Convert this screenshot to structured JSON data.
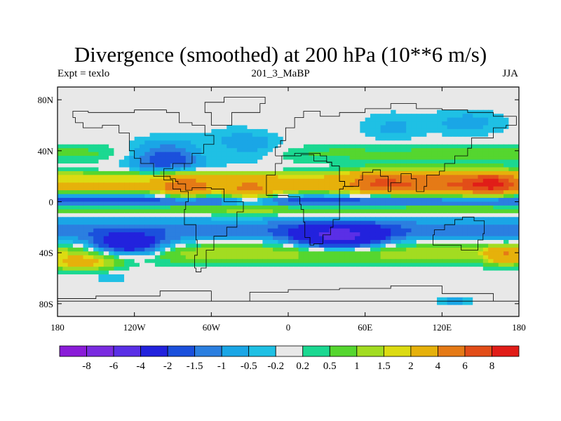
{
  "chart_data": {
    "type": "heatmap",
    "title": "Divergence (smoothed) at 200 hPa (10**6 m/s)",
    "left_string": "Expt = texlo",
    "center_string": "201_3_MaBP",
    "right_string": "JJA",
    "xlim": [
      -180,
      180
    ],
    "ylim": [
      -90,
      90
    ],
    "x_ticks": [
      -180,
      -120,
      -60,
      0,
      60,
      120,
      180
    ],
    "x_tick_labels": [
      "180",
      "120W",
      "60W",
      "0",
      "60E",
      "120E",
      "180"
    ],
    "y_ticks": [
      80,
      40,
      0,
      -40,
      -80
    ],
    "y_tick_labels": [
      "80N",
      "40N",
      "0",
      "40S",
      "80S"
    ],
    "colorbar_levels": [
      "-8",
      "-6",
      "-4",
      "-2",
      "-1.5",
      "-1",
      "-0.5",
      "-0.2",
      "0.2",
      "0.5",
      "1",
      "1.5",
      "2",
      "4",
      "6",
      "8"
    ],
    "colorbar_colors": [
      "#8a1cd8",
      "#7a2be0",
      "#5a2fe6",
      "#2222dd",
      "#1b50dc",
      "#2b7fe0",
      "#1aa6e6",
      "#1fc0e4",
      "#e8e8e8",
      "#1bd891",
      "#55d62f",
      "#a2dc21",
      "#dcdb12",
      "#e6b10b",
      "#e57a16",
      "#e24d18",
      "#e11d18"
    ],
    "regions": [
      {
        "type": "band",
        "lat": 20,
        "lon_range": [
          -180,
          180
        ],
        "halfwidth": 4,
        "value": 1.3
      },
      {
        "type": "band",
        "lat": 12,
        "lon_range": [
          -180,
          180
        ],
        "halfwidth": 6,
        "value": 2.4
      },
      {
        "type": "band",
        "lat": 6,
        "lon_range": [
          -180,
          180
        ],
        "halfwidth": 3,
        "value": -0.6
      },
      {
        "type": "band",
        "lat": 0,
        "lon_range": [
          -180,
          180
        ],
        "halfwidth": 4,
        "value": -2.2
      },
      {
        "type": "band",
        "lat": -6,
        "lon_range": [
          -180,
          180
        ],
        "halfwidth": 5,
        "value": 1.2
      },
      {
        "type": "band",
        "lat": -22,
        "lon_range": [
          -180,
          180
        ],
        "halfwidth": 10,
        "value": -1.3
      },
      {
        "type": "band",
        "lat": -40,
        "lon_range": [
          -180,
          180
        ],
        "halfwidth": 8,
        "value": 1.4
      },
      {
        "type": "band",
        "lat": 38,
        "lon_range": [
          -180,
          180
        ],
        "halfwidth": 8,
        "value": 0.6
      },
      {
        "type": "blob",
        "lon": -30,
        "lat": 8,
        "rlon": 22,
        "rlat": 10,
        "value": 2.5
      },
      {
        "type": "blob",
        "lon": -80,
        "lat": 12,
        "rlon": 18,
        "rlat": 9,
        "value": 3.5
      },
      {
        "type": "blob",
        "lon": 120,
        "lat": 14,
        "rlon": 50,
        "rlat": 10,
        "value": 3.5
      },
      {
        "type": "blob",
        "lon": 160,
        "lat": 14,
        "rlon": 20,
        "rlat": 8,
        "value": 5.0
      },
      {
        "type": "blob",
        "lon": 70,
        "lat": 16,
        "rlon": 24,
        "rlat": 8,
        "value": 3.0
      },
      {
        "type": "blob",
        "lon": -125,
        "lat": -35,
        "rlon": 30,
        "rlat": 9,
        "value": -3.5
      },
      {
        "type": "blob",
        "lon": 40,
        "lat": -28,
        "rlon": 34,
        "rlat": 10,
        "value": -3.8
      },
      {
        "type": "blob",
        "lon": -95,
        "lat": 35,
        "rlon": 30,
        "rlat": 12,
        "value": -2.4
      },
      {
        "type": "blob",
        "lon": -30,
        "lat": 44,
        "rlon": 28,
        "rlat": 14,
        "value": -1.2
      },
      {
        "type": "blob",
        "lon": -160,
        "lat": -48,
        "rlon": 25,
        "rlat": 6,
        "value": 2.2
      },
      {
        "type": "blob",
        "lon": 170,
        "lat": -42,
        "rlon": 14,
        "rlat": 7,
        "value": 2.8
      },
      {
        "type": "blob",
        "lon": 80,
        "lat": 58,
        "rlon": 25,
        "rlat": 12,
        "value": -0.6
      },
      {
        "type": "blob",
        "lon": 140,
        "lat": 62,
        "rlon": 30,
        "rlat": 10,
        "value": -0.7
      },
      {
        "type": "blob",
        "lon": 130,
        "lat": -78,
        "rlon": 12,
        "rlat": 4,
        "value": -0.7
      },
      {
        "type": "blob",
        "lon": -140,
        "lat": -60,
        "rlon": 12,
        "rlat": 3,
        "value": -0.7
      },
      {
        "type": "blob",
        "lon": 0,
        "lat": 65,
        "rlon": 45,
        "rlat": 16,
        "value": 0.0
      },
      {
        "type": "blob",
        "lon": -150,
        "lat": 70,
        "rlon": 40,
        "rlat": 14,
        "value": 0.0
      },
      {
        "type": "blob",
        "lon": -150,
        "lat": -75,
        "rlon": 40,
        "rlat": 12,
        "value": 0.0
      },
      {
        "type": "blob",
        "lon": 20,
        "lat": -72,
        "rlon": 50,
        "rlat": 12,
        "value": 0.0
      }
    ]
  }
}
